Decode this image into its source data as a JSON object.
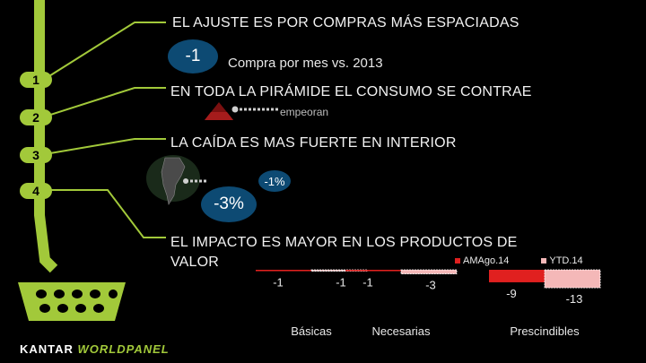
{
  "headings": {
    "h1": "EL AJUSTE ES POR COMPRAS MÁS ESPACIADAS",
    "h2": "EN TODA LA PIRÁMIDE EL CONSUMO SE CONTRAE",
    "h3": "LA CAÍDA ES MAS FUERTE EN INTERIOR",
    "h4_line1": "EL IMPACTO ES MAYOR EN LOS PRODUCTOS DE",
    "h4_line2": "VALOR"
  },
  "badges": [
    "1",
    "2",
    "3",
    "4"
  ],
  "section1": {
    "value": "-1",
    "label": "Compra por mes vs. 2013"
  },
  "section2": {
    "label": "empeoran"
  },
  "section3": {
    "value_small": "-1%",
    "value_large": "-3%"
  },
  "brand": {
    "part1": "KANTAR ",
    "part2": "WORLDPANEL"
  },
  "colors": {
    "accent_green": "#a2c93a",
    "bubble_blue": "#0d4a73",
    "bar_red": "#e0201f",
    "bar_pink": "#f4b8b8"
  },
  "chart_data": {
    "type": "bar",
    "categories": [
      "Básicas",
      "Necesarias",
      "Prescindibles"
    ],
    "series": [
      {
        "name": "AMAgo.14",
        "values": [
          -1,
          -1,
          -9
        ]
      },
      {
        "name": "YTD.14",
        "values": [
          -1,
          -3,
          -13
        ]
      }
    ],
    "value_labels": [
      [
        "-1",
        "-1",
        "-9"
      ],
      [
        "-1",
        "-3",
        "-13"
      ]
    ],
    "legend": "top-right"
  }
}
